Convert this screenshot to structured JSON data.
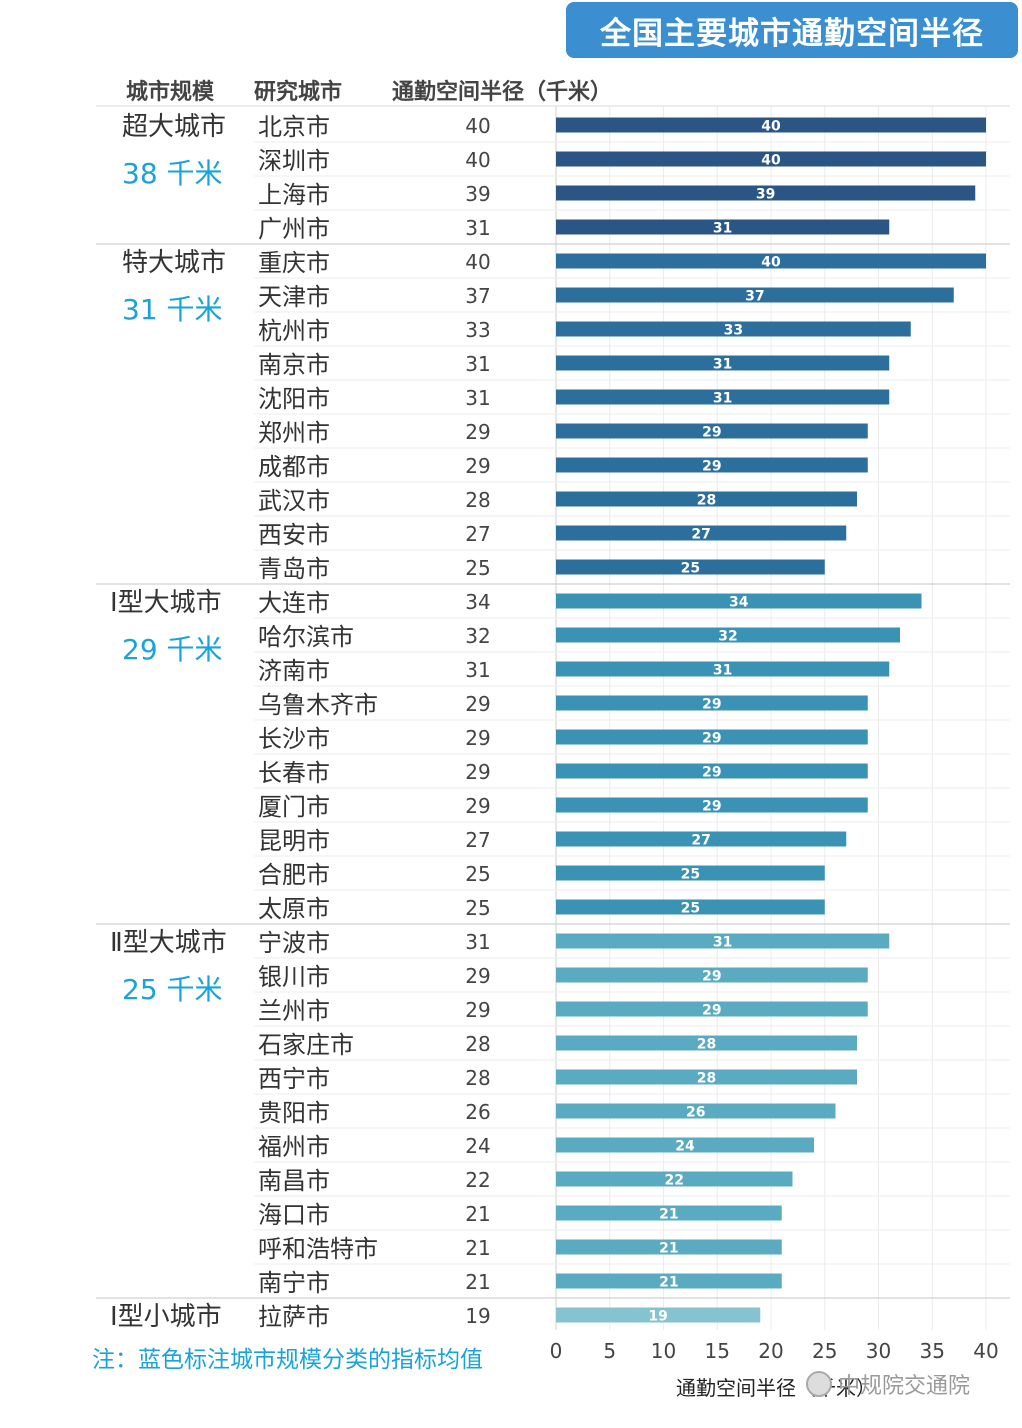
{
  "title": "全国主要城市通勤空间半径",
  "headers": {
    "scale": "城市规模",
    "city": "研究城市",
    "radius": "通勤空间半径（千米）"
  },
  "note": "注：蓝色标注城市规模分类的指标均值",
  "watermark": "中规院交通院",
  "colors": {
    "title_bg": "#3b8fd0",
    "avg_text": "#1aa3d6",
    "tier1": "#2a5585",
    "tier2": "#2c6f9c",
    "tier3": "#3a92b4",
    "tier4": "#5aabc2",
    "tier5": "#85c3cf"
  },
  "chart_data": {
    "type": "bar",
    "orientation": "horizontal",
    "title": "全国主要城市通勤空间半径",
    "xlabel": "通勤空间半径（千米）",
    "xlim": [
      0,
      40
    ],
    "xticks": [
      0,
      5,
      10,
      15,
      20,
      25,
      30,
      35,
      40
    ],
    "groups": [
      {
        "tier": "超大城市",
        "avg_label": "38 千米",
        "color": "#2a5585",
        "cities": [
          {
            "name": "北京市",
            "value": 40
          },
          {
            "name": "深圳市",
            "value": 40
          },
          {
            "name": "上海市",
            "value": 39
          },
          {
            "name": "广州市",
            "value": 31
          }
        ]
      },
      {
        "tier": "特大城市",
        "avg_label": "31 千米",
        "color": "#2c6f9c",
        "cities": [
          {
            "name": "重庆市",
            "value": 40
          },
          {
            "name": "天津市",
            "value": 37
          },
          {
            "name": "杭州市",
            "value": 33
          },
          {
            "name": "南京市",
            "value": 31
          },
          {
            "name": "沈阳市",
            "value": 31
          },
          {
            "name": "郑州市",
            "value": 29
          },
          {
            "name": "成都市",
            "value": 29
          },
          {
            "name": "武汉市",
            "value": 28
          },
          {
            "name": "西安市",
            "value": 27
          },
          {
            "name": "青岛市",
            "value": 25
          }
        ]
      },
      {
        "tier": "Ⅰ型大城市",
        "avg_label": "29 千米",
        "color": "#3a92b4",
        "cities": [
          {
            "name": "大连市",
            "value": 34
          },
          {
            "name": "哈尔滨市",
            "value": 32
          },
          {
            "name": "济南市",
            "value": 31
          },
          {
            "name": "乌鲁木齐市",
            "value": 29
          },
          {
            "name": "长沙市",
            "value": 29
          },
          {
            "name": "长春市",
            "value": 29
          },
          {
            "name": "厦门市",
            "value": 29
          },
          {
            "name": "昆明市",
            "value": 27
          },
          {
            "name": "合肥市",
            "value": 25
          },
          {
            "name": "太原市",
            "value": 25
          }
        ]
      },
      {
        "tier": "Ⅱ型大城市",
        "avg_label": "25 千米",
        "color": "#5aabc2",
        "cities": [
          {
            "name": "宁波市",
            "value": 31
          },
          {
            "name": "银川市",
            "value": 29
          },
          {
            "name": "兰州市",
            "value": 29
          },
          {
            "name": "石家庄市",
            "value": 28
          },
          {
            "name": "西宁市",
            "value": 28
          },
          {
            "name": "贵阳市",
            "value": 26
          },
          {
            "name": "福州市",
            "value": 24
          },
          {
            "name": "南昌市",
            "value": 22
          },
          {
            "name": "海口市",
            "value": 21
          },
          {
            "name": "呼和浩特市",
            "value": 21
          },
          {
            "name": "南宁市",
            "value": 21
          }
        ]
      },
      {
        "tier": "Ⅰ型小城市",
        "avg_label": "",
        "color": "#85c3cf",
        "cities": [
          {
            "name": "拉萨市",
            "value": 19
          }
        ]
      }
    ]
  }
}
